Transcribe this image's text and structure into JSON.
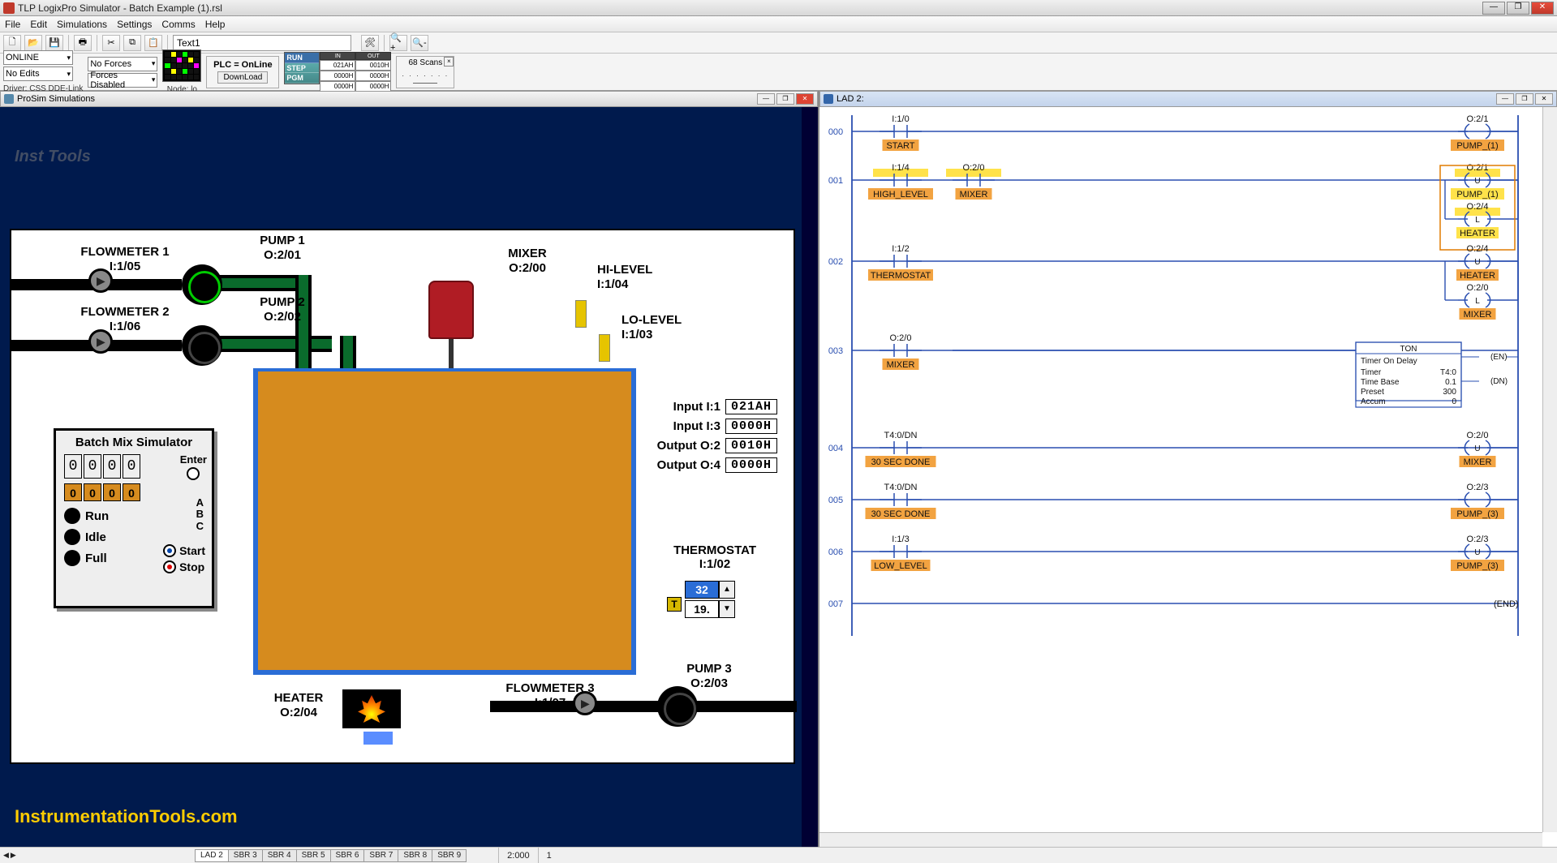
{
  "window": {
    "title": "TLP LogixPro Simulator  -  Batch Example (1).rsl"
  },
  "menu": [
    "File",
    "Edit",
    "Simulations",
    "Settings",
    "Comms",
    "Help"
  ],
  "toolbar1": {
    "search_text": "Text1"
  },
  "toolbar2": {
    "mode": "ONLINE",
    "forces": "No Forces",
    "edits": "No Edits",
    "forces_enabled": "Forces Disabled",
    "driver": "Driver: CSS DDE-Link",
    "node": "Node: lo",
    "plc_status": "PLC = OnLine",
    "download": "DownLoad",
    "run_modes": [
      "RUN",
      "STEP",
      "PGM"
    ],
    "io_head_in": "IN",
    "io_head_out": "OUT",
    "io_in_vals": [
      "021AH",
      "0000H",
      "0000H"
    ],
    "io_out_vals": [
      "0010H",
      "0000H",
      "0000H"
    ],
    "scans": "68  Scans"
  },
  "prosim": {
    "title": "ProSim Simulations",
    "watermark": "Inst Tools",
    "footer": "InstrumentationTools.com",
    "labels": {
      "flowmeter1": "FLOWMETER 1",
      "flowmeter1_addr": "I:1/05",
      "flowmeter2": "FLOWMETER 2",
      "flowmeter2_addr": "I:1/06",
      "pump1": "PUMP 1",
      "pump1_addr": "O:2/01",
      "pump2": "PUMP 2",
      "pump2_addr": "O:2/02",
      "mixer": "MIXER",
      "mixer_addr": "O:2/00",
      "hilevel": "HI-LEVEL",
      "hilevel_addr": "I:1/04",
      "lolevel": "LO-LEVEL",
      "lolevel_addr": "I:1/03",
      "heater": "HEATER",
      "heater_addr": "O:2/04",
      "flowmeter3": "FLOWMETER 3",
      "flowmeter3_addr": "I:1/07",
      "pump3": "PUMP 3",
      "pump3_addr": "O:2/03",
      "thermostat": "THERMOSTAT",
      "thermostat_addr": "I:1/02"
    },
    "io": {
      "in1_lbl": "Input I:1",
      "in1_val": "021AH",
      "in3_lbl": "Input I:3",
      "in3_val": "0000H",
      "out2_lbl": "Output O:2",
      "out2_val": "0010H",
      "out4_lbl": "Output O:4",
      "out4_val": "0000H"
    },
    "thermo": {
      "set": "32",
      "act": "19.",
      "t": "T"
    },
    "batch": {
      "title": "Batch Mix Simulator",
      "digits": [
        "0",
        "0",
        "0",
        "0"
      ],
      "bits": [
        "0",
        "0",
        "0",
        "0"
      ],
      "enter": "Enter",
      "abc": "A\nB\nC",
      "run": "Run",
      "idle": "Idle",
      "full": "Full",
      "start": "Start",
      "stop": "Stop"
    }
  },
  "ladder": {
    "title": "LAD 2:",
    "rail_color": "#2a4fb0",
    "line_color": "#2a4fb0",
    "highlight": "#ffe24a",
    "label_bg": "#f2a341",
    "rungs": [
      {
        "num": "000",
        "left": [
          {
            "addr": "I:1/0",
            "label": "START",
            "hl": false
          }
        ],
        "right": [
          {
            "addr": "O:2/1",
            "label": "PUMP_(1)",
            "type": "coil",
            "hl": false
          }
        ]
      },
      {
        "num": "001",
        "left": [
          {
            "addr": "I:1/4",
            "label": "HIGH_LEVEL",
            "hl": true
          },
          {
            "addr": "O:2/0",
            "label": "MIXER",
            "hl": true
          }
        ],
        "right": [
          {
            "addr": "O:2/1",
            "label": "PUMP_(1)",
            "type": "unlatch",
            "hl": true
          },
          {
            "addr": "O:2/4",
            "label": "HEATER",
            "type": "latch",
            "hl": true
          }
        ]
      },
      {
        "num": "002",
        "left": [
          {
            "addr": "I:1/2",
            "label": "THERMOSTAT",
            "hl": false
          }
        ],
        "right": [
          {
            "addr": "O:2/4",
            "label": "HEATER",
            "type": "unlatch",
            "hl": false
          },
          {
            "addr": "O:2/0",
            "label": "MIXER",
            "type": "latch",
            "hl": false
          }
        ]
      },
      {
        "num": "003",
        "left": [
          {
            "addr": "O:2/0",
            "label": "MIXER",
            "hl": false
          }
        ],
        "right": [
          {
            "type": "ton",
            "timer": "T4:0",
            "tb": "0.1",
            "preset": "300",
            "accum": "0"
          }
        ]
      },
      {
        "num": "004",
        "left": [
          {
            "addr": "T4:0/DN",
            "label": "30 SEC DONE",
            "hl": false
          }
        ],
        "right": [
          {
            "addr": "O:2/0",
            "label": "MIXER",
            "type": "unlatch",
            "hl": false
          }
        ]
      },
      {
        "num": "005",
        "left": [
          {
            "addr": "T4:0/DN",
            "label": "30 SEC DONE",
            "hl": false
          }
        ],
        "right": [
          {
            "addr": "O:2/3",
            "label": "PUMP_(3)",
            "type": "coil",
            "hl": false
          }
        ]
      },
      {
        "num": "006",
        "left": [
          {
            "addr": "I:1/3",
            "label": "LOW_LEVEL",
            "hl": false
          }
        ],
        "right": [
          {
            "addr": "O:2/3",
            "label": "PUMP_(3)",
            "type": "unlatch",
            "hl": false
          }
        ]
      },
      {
        "num": "007",
        "left": [],
        "right": [
          {
            "type": "end"
          }
        ]
      }
    ]
  },
  "status": {
    "tabs": [
      "LAD 2",
      "SBR 3",
      "SBR 4",
      "SBR 5",
      "SBR 6",
      "SBR 7",
      "SBR 8",
      "SBR 9"
    ],
    "val1": "2:000",
    "val2": "1"
  }
}
